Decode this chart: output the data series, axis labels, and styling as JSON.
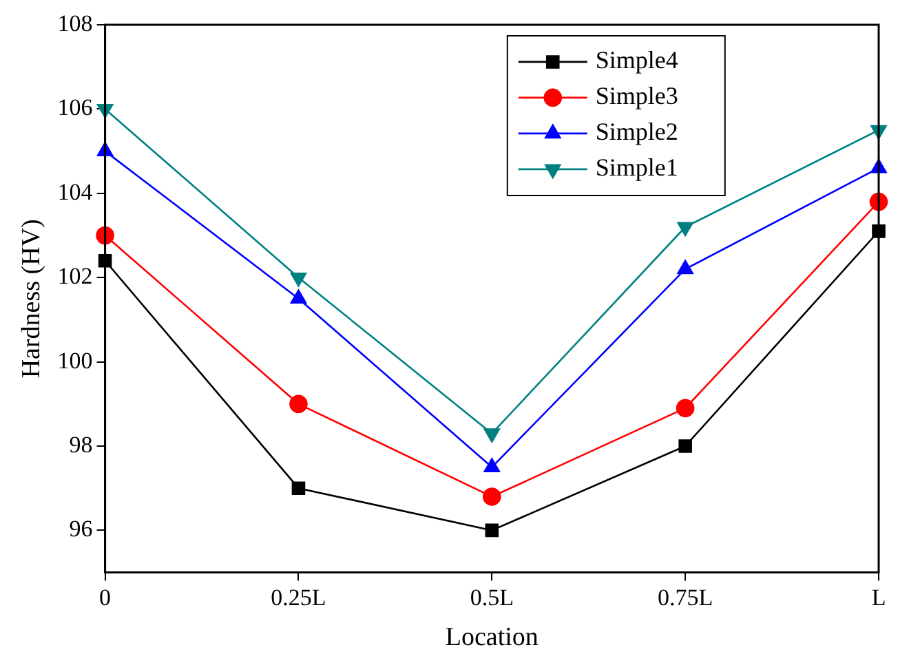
{
  "chart_data": {
    "type": "line",
    "xlabel": "Location",
    "ylabel": "Hardness (HV)",
    "categories": [
      "0",
      "0.25L",
      "0.5L",
      "0.75L",
      "L"
    ],
    "ylim": [
      95,
      108
    ],
    "yticks": [
      96,
      98,
      100,
      102,
      104,
      106,
      108
    ],
    "grid": false,
    "legend": "top right",
    "series": [
      {
        "name": "Simple4",
        "color": "#000000",
        "marker": "square",
        "values": [
          102.4,
          97.0,
          96.0,
          98.0,
          103.1
        ]
      },
      {
        "name": "Simple3",
        "color": "#ff0000",
        "marker": "circle",
        "values": [
          103.0,
          99.0,
          96.8,
          98.9,
          103.8
        ]
      },
      {
        "name": "Simple2",
        "color": "#0000ff",
        "marker": "triangle",
        "values": [
          105.0,
          101.5,
          97.5,
          102.2,
          104.6
        ]
      },
      {
        "name": "Simple1",
        "color": "#008080",
        "marker": "triangle-down",
        "values": [
          106.0,
          102.0,
          98.3,
          103.2,
          105.5
        ]
      }
    ]
  }
}
